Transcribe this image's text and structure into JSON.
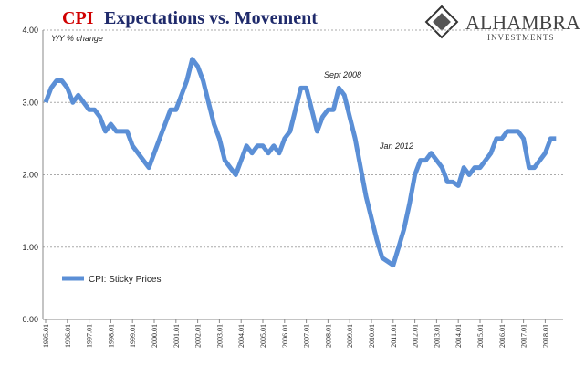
{
  "chart_data": {
    "type": "line",
    "title_highlight": "CPI",
    "title": "Expectations vs. Movement",
    "logo": {
      "name": "ALHAMBRA",
      "tagline": "INVESTMENTS"
    },
    "subtitle": "Y/Y % change",
    "annotations": [
      "Sept 2008",
      "Jan 2012"
    ],
    "categories": [
      "1995.01",
      null,
      null,
      null,
      "1996.01",
      null,
      null,
      null,
      "1997.01",
      null,
      null,
      null,
      "1998.01",
      null,
      null,
      null,
      "1999.01",
      null,
      null,
      null,
      "2000.01",
      null,
      null,
      null,
      "2001.01",
      null,
      null,
      null,
      "2002.01",
      null,
      null,
      null,
      "2003.01",
      null,
      null,
      null,
      "2004.01",
      null,
      null,
      null,
      "2005.01",
      null,
      null,
      null,
      "2006.01",
      null,
      null,
      null,
      "2007.01",
      null,
      null,
      null,
      "2008.01",
      null,
      null,
      null,
      "2009.01",
      null,
      null,
      null,
      "2010.01",
      null,
      null,
      null,
      "2011.01",
      null,
      null,
      null,
      "2012.01",
      null,
      null,
      null,
      "2013.01",
      null,
      null,
      null,
      "2014.01",
      null,
      null,
      null,
      "2015.01",
      null,
      null,
      null,
      "2016.01",
      null,
      null,
      null,
      "2017.01",
      null,
      null,
      null,
      "2018.01",
      null,
      null
    ],
    "series": [
      {
        "name": "CPI: Sticky Prices",
        "color": "#5b8fd6",
        "values": [
          3.0,
          3.2,
          3.3,
          3.3,
          3.2,
          3.0,
          3.1,
          3.0,
          2.9,
          2.9,
          2.8,
          2.6,
          2.7,
          2.6,
          2.6,
          2.6,
          2.4,
          2.3,
          2.2,
          2.1,
          2.3,
          2.5,
          2.7,
          2.9,
          2.9,
          3.1,
          3.3,
          3.6,
          3.5,
          3.3,
          3.0,
          2.7,
          2.5,
          2.2,
          2.1,
          2.0,
          2.2,
          2.4,
          2.3,
          2.4,
          2.4,
          2.3,
          2.4,
          2.3,
          2.5,
          2.6,
          2.9,
          3.2,
          3.2,
          2.9,
          2.6,
          2.8,
          2.9,
          2.9,
          3.2,
          3.1,
          2.8,
          2.5,
          2.1,
          1.7,
          1.4,
          1.1,
          0.85,
          0.8,
          0.75,
          1.0,
          1.25,
          1.6,
          2.0,
          2.2,
          2.2,
          2.3,
          2.2,
          2.1,
          1.9,
          1.9,
          1.85,
          2.1,
          2.0,
          2.1,
          2.1,
          2.2,
          2.3,
          2.5,
          2.5,
          2.6,
          2.6,
          2.6,
          2.5,
          2.1,
          2.1,
          2.2,
          2.3,
          2.5,
          2.5
        ]
      }
    ],
    "ylim": [
      0,
      4
    ],
    "yticks": [
      {
        "value": 0,
        "label": "0.00"
      },
      {
        "value": 1,
        "label": "1.00"
      },
      {
        "value": 2,
        "label": "2.00"
      },
      {
        "value": 3,
        "label": "3.00"
      },
      {
        "value": 4,
        "label": "4.00"
      }
    ],
    "grid": true
  }
}
